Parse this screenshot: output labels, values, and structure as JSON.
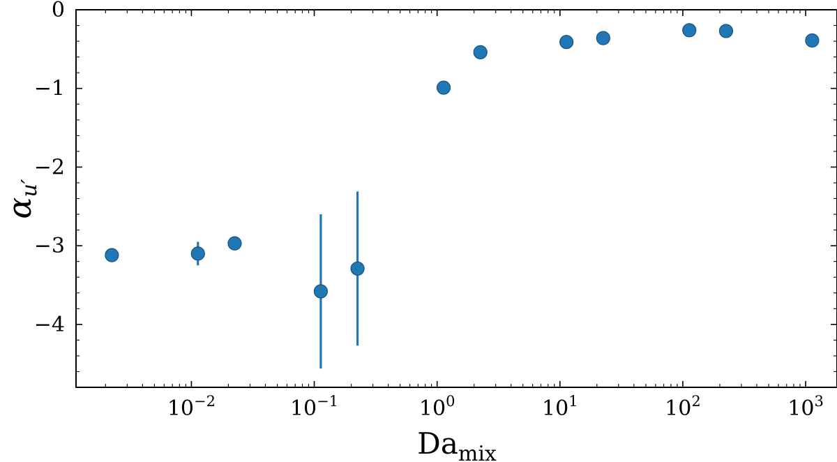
{
  "chart_data": {
    "type": "scatter",
    "xscale": "log",
    "xlabel": {
      "base": "Da",
      "sub": "mix"
    },
    "ylabel": {
      "base": "α",
      "sub": "u′"
    },
    "xlim": [
      0.00115,
      1800
    ],
    "ylim": [
      -4.8,
      0.0
    ],
    "yticks": [
      0,
      -1,
      -2,
      -3,
      -4
    ],
    "ytick_labels": [
      "0",
      "−1",
      "−2",
      "−3",
      "−4"
    ],
    "xticks": [
      0.01,
      0.1,
      1,
      10,
      100,
      1000
    ],
    "xtick_labels": [
      {
        "base": "10",
        "exp": "−2"
      },
      {
        "base": "10",
        "exp": "−1"
      },
      {
        "base": "10",
        "exp": "0"
      },
      {
        "base": "10",
        "exp": "1"
      },
      {
        "base": "10",
        "exp": "2"
      },
      {
        "base": "10",
        "exp": "3"
      }
    ],
    "grid": false,
    "color": "#1f77b4",
    "points": [
      {
        "x": 0.00225,
        "y": -3.12,
        "err": 0
      },
      {
        "x": 0.0113,
        "y": -3.1,
        "err": 0.15
      },
      {
        "x": 0.0225,
        "y": -2.97,
        "err": 0
      },
      {
        "x": 0.113,
        "y": -3.58,
        "err": 0.98
      },
      {
        "x": 0.225,
        "y": -3.29,
        "err": 0.98
      },
      {
        "x": 1.13,
        "y": -0.99,
        "err": 0
      },
      {
        "x": 2.25,
        "y": -0.54,
        "err": 0
      },
      {
        "x": 11.3,
        "y": -0.41,
        "err": 0
      },
      {
        "x": 22.5,
        "y": -0.36,
        "err": 0
      },
      {
        "x": 113,
        "y": -0.26,
        "err": 0
      },
      {
        "x": 225,
        "y": -0.27,
        "err": 0
      },
      {
        "x": 1130,
        "y": -0.39,
        "err": 0
      }
    ]
  }
}
